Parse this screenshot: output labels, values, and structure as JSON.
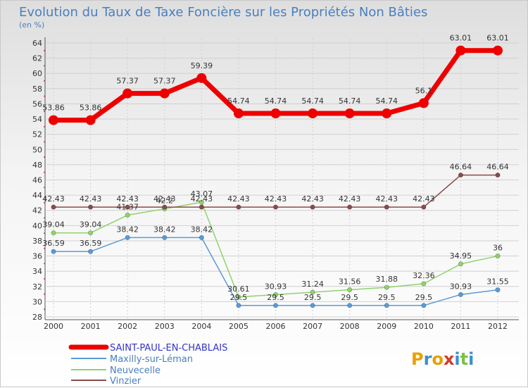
{
  "chart_data": {
    "type": "line",
    "title": "Evolution du Taux de Taxe Foncière sur les Propriétés Non Bâties",
    "ylabel": "(en %)",
    "xlabel": "",
    "ylim": [
      28,
      64
    ],
    "ystep": 2,
    "grid": true,
    "categories": [
      "2000",
      "2001",
      "2002",
      "2003",
      "2004",
      "2005",
      "2006",
      "2007",
      "2008",
      "2009",
      "2010",
      "2011",
      "2012"
    ],
    "series": [
      {
        "name": "SAINT-PAUL-EN-CHABLAIS",
        "color": "#ee0000",
        "labelColor": "#3333cc",
        "values": [
          53.86,
          53.86,
          57.37,
          57.37,
          59.39,
          54.74,
          54.74,
          54.74,
          54.74,
          54.74,
          56.1,
          63.01,
          63.01
        ],
        "labels": [
          "53.86",
          "53.86",
          "57.37",
          "57.37",
          "59.39",
          "54.74",
          "54.74",
          "54.74",
          "54.74",
          "54.74",
          "56.1",
          "63.01",
          "63.01"
        ]
      },
      {
        "name": "Maxilly-sur-Léman",
        "color": "#5b9bd5",
        "labelColor": "#3a6fb0",
        "values": [
          36.59,
          36.59,
          38.42,
          38.42,
          38.42,
          29.5,
          29.5,
          29.5,
          29.5,
          29.5,
          29.5,
          30.93,
          31.55
        ],
        "labels": [
          "36.59",
          "36.59",
          "38.42",
          "38.42",
          "38.42",
          "29.5",
          "29.5",
          "29.5",
          "29.5",
          "29.5",
          "29.5",
          "30.93",
          "31.55"
        ]
      },
      {
        "name": "Neuvecelle",
        "color": "#90d36a",
        "labelColor": "#5faa32",
        "values": [
          39.04,
          39.04,
          41.37,
          42.2,
          43.07,
          30.61,
          30.93,
          31.24,
          31.56,
          31.88,
          32.36,
          34.95,
          36
        ],
        "labels": [
          "39.04",
          "39.04",
          "41.37",
          "42.2",
          "43.07",
          "30.61",
          "30.93",
          "31.24",
          "31.56",
          "31.88",
          "32.36",
          "34.95",
          "36"
        ]
      },
      {
        "name": "Vinzier",
        "color": "#8b4a4a",
        "labelColor": "#6b2b2b",
        "values": [
          42.43,
          42.43,
          42.43,
          42.43,
          42.43,
          42.43,
          42.43,
          42.43,
          42.43,
          42.43,
          42.43,
          46.64,
          46.64
        ],
        "labels": [
          "42.43",
          "42.43",
          "42.43",
          "42.43",
          "42.43",
          "42.43",
          "42.43",
          "42.43",
          "42.43",
          "42.43",
          "42.43",
          "46.64",
          "46.64"
        ]
      }
    ]
  },
  "logo": {
    "text": "Proxiti",
    "letters": [
      "P",
      "r",
      "o",
      "x",
      "i",
      "t",
      "i"
    ],
    "colors": [
      "#e8a000",
      "#3a8fd0",
      "#e8a000",
      "#d33a2a",
      "#3a8fd0",
      "#7cc242",
      "#3a8fd0"
    ]
  }
}
